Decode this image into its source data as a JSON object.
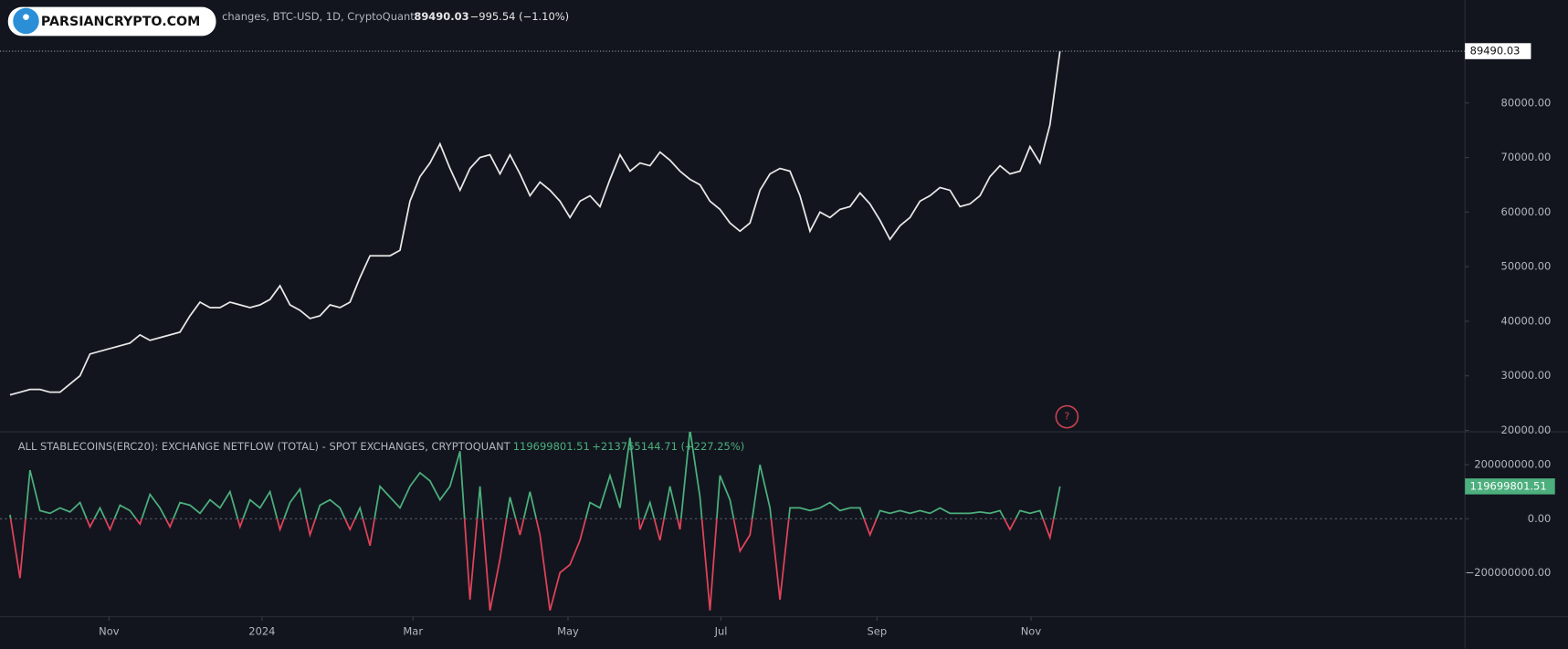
{
  "header": {
    "logo": "PARSIANCRYPTO.COM",
    "symbol": "changes, BTC-USD, 1D, CryptoQuant",
    "last": "89490.03",
    "change": "−995.54 (−1.10%)",
    "help_icon": "?"
  },
  "chart_data": [
    {
      "type": "line",
      "color": "#e8e8e8",
      "values": [
        26500,
        27000,
        27500,
        27500,
        27000,
        27000,
        28500,
        30000,
        34000,
        34500,
        35000,
        35500,
        36000,
        37500,
        36500,
        37000,
        37500,
        38000,
        41000,
        43500,
        42500,
        42500,
        43500,
        43000,
        42500,
        43000,
        44000,
        46500,
        43000,
        42000,
        40500,
        41000,
        43000,
        42500,
        43500,
        48000,
        52000,
        52000,
        52000,
        53000,
        62000,
        66500,
        69000,
        72500,
        68000,
        64000,
        68000,
        70000,
        70500,
        67000,
        70500,
        67000,
        63000,
        65500,
        64000,
        62000,
        59000,
        62000,
        63000,
        61000,
        66000,
        70500,
        67500,
        69000,
        68500,
        71000,
        69500,
        67500,
        66000,
        65000,
        62000,
        60500,
        58000,
        56500,
        58000,
        64000,
        67000,
        68000,
        67500,
        63000,
        56500,
        60000,
        59000,
        60500,
        61000,
        63500,
        61500,
        58500,
        55000,
        57500,
        59000,
        62000,
        63000,
        64500,
        64000,
        61000,
        61500,
        63000,
        66500,
        68500,
        67000,
        67500,
        72000,
        69000,
        76000,
        89490.03
      ],
      "xlim": [
        0,
        145.5
      ],
      "ylim": [
        19744,
        98864
      ],
      "yticks": [
        {
          "value": 20000,
          "label": "20000.00"
        },
        {
          "value": 30000,
          "label": "30000.00"
        },
        {
          "value": 40000,
          "label": "40000.00"
        },
        {
          "value": 50000,
          "label": "50000.00"
        },
        {
          "value": 60000,
          "label": "60000.00"
        },
        {
          "value": 70000,
          "label": "70000.00"
        },
        {
          "value": 80000,
          "label": "80000.00"
        }
      ],
      "last_label": "89490.03"
    },
    {
      "type": "area",
      "title": "ALL STABLECOINS(ERC20): EXCHANGE NETFLOW (TOTAL) - SPOT EXCHANGES, CRYPTOQUANT",
      "last": "119699801.51",
      "change": "+213765144.71 (+227.25%)",
      "color": "#4caf7d",
      "negative_color": "#e0435a",
      "values": [
        15000000,
        -220000000,
        180000000,
        30000000,
        20000000,
        40000000,
        25000000,
        60000000,
        -30000000,
        40000000,
        -40000000,
        50000000,
        30000000,
        -20000000,
        90000000,
        40000000,
        -30000000,
        60000000,
        50000000,
        20000000,
        70000000,
        40000000,
        100000000,
        -30000000,
        70000000,
        40000000,
        100000000,
        -40000000,
        60000000,
        110000000,
        -60000000,
        50000000,
        70000000,
        40000000,
        -40000000,
        40000000,
        -100000000,
        120000000,
        80000000,
        40000000,
        120000000,
        170000000,
        140000000,
        70000000,
        120000000,
        250000000,
        -300000000,
        120000000,
        -340000000,
        -150000000,
        80000000,
        -60000000,
        100000000,
        -60000000,
        -340000000,
        -200000000,
        -170000000,
        -80000000,
        60000000,
        40000000,
        160000000,
        40000000,
        300000000,
        -40000000,
        60000000,
        -80000000,
        120000000,
        -40000000,
        330000000,
        80000000,
        -340000000,
        160000000,
        70000000,
        -120000000,
        -60000000,
        200000000,
        40000000,
        -300000000,
        40000000,
        40000000,
        30000000,
        40000000,
        60000000,
        30000000,
        40000000,
        40000000,
        -60000000,
        30000000,
        20000000,
        30000000,
        20000000,
        30000000,
        20000000,
        40000000,
        20000000,
        20000000,
        20000000,
        25000000,
        20000000,
        30000000,
        -40000000,
        30000000,
        20000000,
        30000000,
        -70000000,
        119699801.51
      ],
      "xlim": [
        0,
        145.5
      ],
      "ylim": [
        -363000000,
        322000000
      ],
      "yticks": [
        {
          "value": -200000000,
          "label": "−200000000.00"
        },
        {
          "value": 0,
          "label": "0.00"
        },
        {
          "value": 200000000,
          "label": "200000000.00"
        }
      ],
      "xticks": [
        {
          "value": 9.9,
          "label": "Nov"
        },
        {
          "value": 25.2,
          "label": "2024"
        },
        {
          "value": 40.3,
          "label": "Mar"
        },
        {
          "value": 55.8,
          "label": "May"
        },
        {
          "value": 71.1,
          "label": "Jul"
        },
        {
          "value": 86.7,
          "label": "Sep"
        },
        {
          "value": 102.1,
          "label": "Nov"
        }
      ],
      "last_label": "119699801.51"
    }
  ]
}
